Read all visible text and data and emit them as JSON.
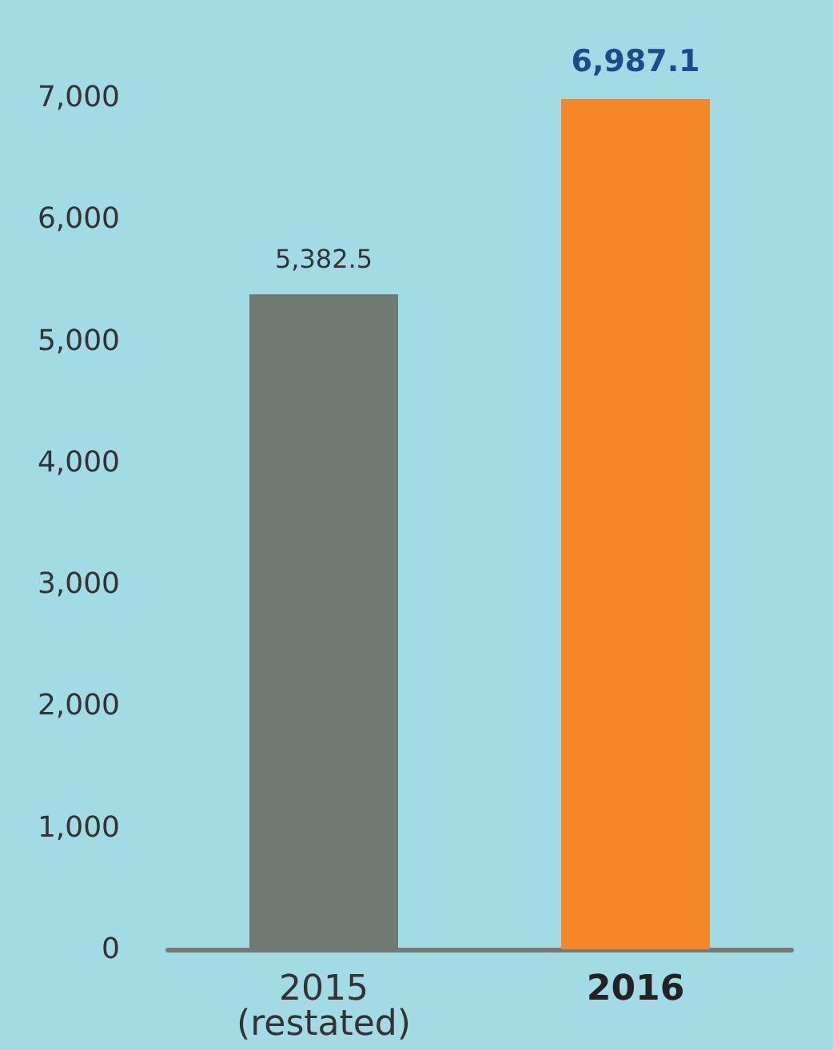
{
  "chart_data": {
    "type": "bar",
    "categories": [
      "2015\n(restated)",
      "2016"
    ],
    "values": [
      5382.5,
      6987.1
    ],
    "colors": [
      "#6f7a72",
      "#f5862a"
    ],
    "value_labels": [
      "5,382.5",
      "6,987.1"
    ],
    "ylim": [
      0,
      7000
    ],
    "yticks": [
      0,
      {
        "value": 1000,
        "label": "1,000"
      },
      {
        "value": 2000,
        "label": "2,000"
      },
      {
        "value": 3000,
        "label": "3,000"
      },
      {
        "value": 4000,
        "label": "4,000"
      },
      {
        "value": 5000,
        "label": "5,000"
      },
      {
        "value": 6000,
        "label": "6,000"
      },
      {
        "value": 7000,
        "label": "7,000"
      }
    ],
    "grid": false
  }
}
